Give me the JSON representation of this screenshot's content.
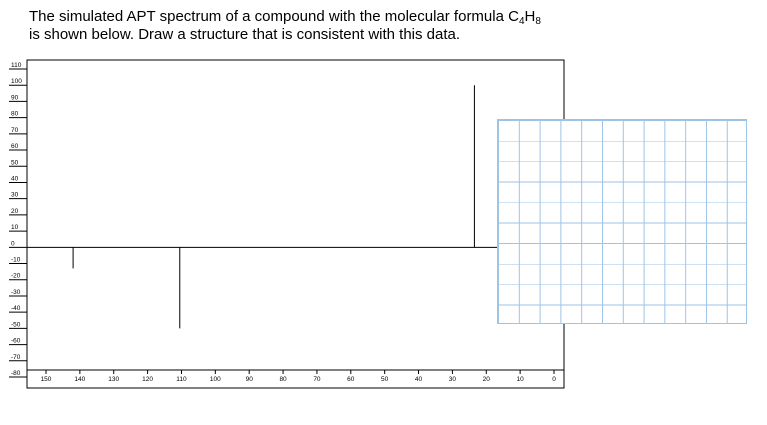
{
  "question": {
    "line1_prefix": "The simulated APT spectrum of a compound with the molecular formula C",
    "subscript_c": "4",
    "h_symbol": "H",
    "subscript_h": "8",
    "line2": "is shown below. Draw a structure that is consistent with this data."
  },
  "chart_data": {
    "type": "bar",
    "title": "",
    "xlabel": "",
    "ylabel": "",
    "x_reversed": true,
    "xlim": [
      155,
      0
    ],
    "ylim": [
      -80,
      110
    ],
    "x_ticks": [
      150,
      140,
      130,
      120,
      110,
      100,
      90,
      80,
      70,
      60,
      50,
      40,
      30,
      20,
      10,
      0
    ],
    "y_ticks": [
      110,
      100,
      90,
      80,
      70,
      60,
      50,
      40,
      30,
      20,
      10,
      0,
      -10,
      -20,
      -30,
      -40,
      -50,
      -60,
      -70,
      -80
    ],
    "peaks": [
      {
        "x": 142,
        "y": -13
      },
      {
        "x": 110.5,
        "y": -50
      },
      {
        "x": 23.5,
        "y": 100
      }
    ]
  },
  "drawing_area": {
    "grid_color": "#9ec3e6",
    "columns": 12,
    "rows": 10
  }
}
